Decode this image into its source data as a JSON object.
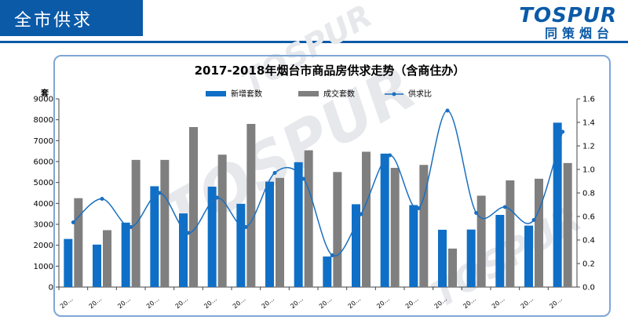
{
  "header": {
    "title": "全市供求"
  },
  "logo": {
    "brand": "TOSPUR",
    "sub": "同策烟台"
  },
  "chart_data": {
    "type": "bar",
    "title": "2017-2018年烟台市商品房供求走势（含商住办）",
    "ylabel": "套",
    "ylim": [
      0,
      9000
    ],
    "y2lim": [
      0,
      1.6
    ],
    "yticks": [
      "0",
      "1000",
      "2000",
      "3000",
      "4000",
      "5000",
      "6000",
      "7000",
      "8000",
      "9000"
    ],
    "y2ticks": [
      "0.0",
      "0.2",
      "0.4",
      "0.6",
      "0.8",
      "1.0",
      "1.2",
      "1.4",
      "1.6"
    ],
    "categories": [
      "20…",
      "20…",
      "20…",
      "20…",
      "20…",
      "20…",
      "20…",
      "20…",
      "20…",
      "20…",
      "20…",
      "20…",
      "20…",
      "20…",
      "20…",
      "20…",
      "20…",
      "20…"
    ],
    "legend_position": "top-center",
    "series": [
      {
        "name": "新增套数",
        "type": "bar",
        "color": "#0f6fc6",
        "values": [
          2300,
          2030,
          3080,
          4820,
          3520,
          4800,
          3980,
          5040,
          5970,
          1460,
          3960,
          6380,
          3920,
          2740,
          2750,
          3450,
          2940,
          7860
        ]
      },
      {
        "name": "成交套数",
        "type": "bar",
        "color": "#7f7f7f",
        "values": [
          4250,
          2720,
          6080,
          6080,
          7650,
          6330,
          7800,
          5220,
          6540,
          5500,
          6470,
          5700,
          5840,
          1840,
          4370,
          5100,
          5180,
          5930
        ]
      },
      {
        "name": "供求比",
        "type": "line",
        "axis": "right",
        "color": "#1a6fc0",
        "values": [
          0.55,
          0.75,
          0.51,
          0.8,
          0.46,
          0.76,
          0.51,
          0.97,
          0.92,
          0.27,
          0.62,
          1.12,
          0.67,
          1.5,
          0.63,
          0.68,
          0.57,
          1.32
        ]
      }
    ]
  }
}
